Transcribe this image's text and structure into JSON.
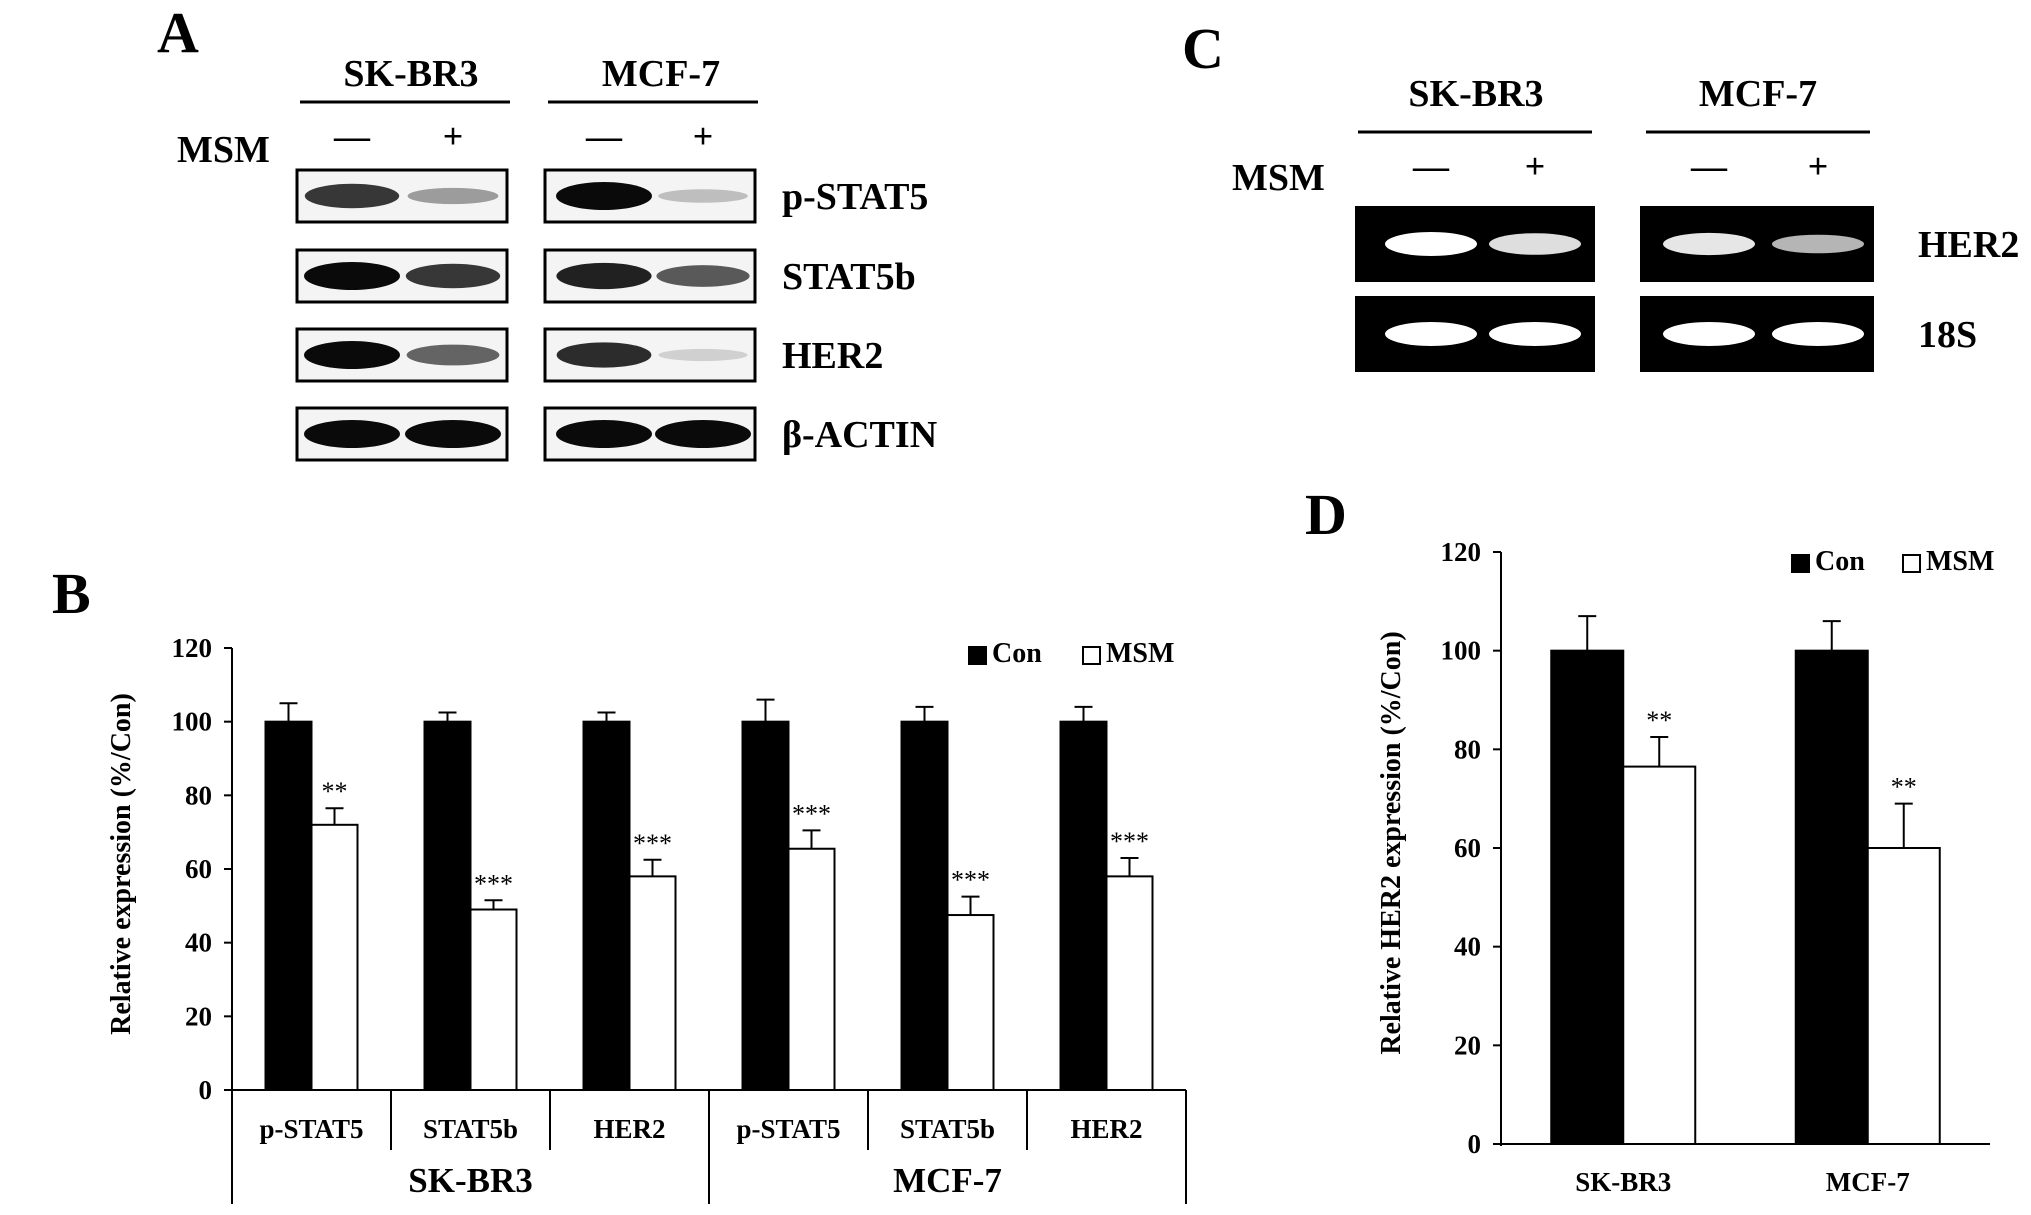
{
  "panels": {
    "a": {
      "letter": "A",
      "cell_lines": [
        "SK-BR3",
        "MCF-7"
      ],
      "treatment_label": "MSM",
      "signs": [
        "—",
        "+"
      ],
      "bands": [
        {
          "name": "p-STAT5",
          "intensity": {
            "skbr3": [
              0.8,
              0.35
            ],
            "mcf7": [
              1.0,
              0.2
            ]
          }
        },
        {
          "name": "STAT5b",
          "intensity": {
            "skbr3": [
              1.0,
              0.8
            ],
            "mcf7": [
              0.9,
              0.65
            ]
          }
        },
        {
          "name": "HER2",
          "intensity": {
            "skbr3": [
              1.0,
              0.6
            ],
            "mcf7": [
              0.85,
              0.12
            ]
          }
        },
        {
          "name": "β-ACTIN",
          "intensity": {
            "skbr3": [
              1.0,
              1.0
            ],
            "mcf7": [
              1.0,
              1.0
            ]
          }
        }
      ]
    },
    "c": {
      "letter": "C",
      "cell_lines": [
        "SK-BR3",
        "MCF-7"
      ],
      "treatment_label": "MSM",
      "signs": [
        "—",
        "+"
      ],
      "bands": [
        {
          "name": "HER2",
          "intensity": {
            "skbr3": [
              1.0,
              0.8
            ],
            "mcf7": [
              0.85,
              0.55
            ]
          }
        },
        {
          "name": "18S",
          "intensity": {
            "skbr3": [
              1.0,
              1.0
            ],
            "mcf7": [
              1.0,
              1.0
            ]
          }
        }
      ]
    }
  },
  "chart_data": [
    {
      "letter": "B",
      "type": "bar",
      "ylabel": "Relative expression (%/Con)",
      "ylim": [
        0,
        120
      ],
      "yticks": [
        0,
        20,
        40,
        60,
        80,
        100,
        120
      ],
      "categories": [
        "p-STAT5",
        "STAT5b",
        "HER2",
        "p-STAT5",
        "STAT5b",
        "HER2"
      ],
      "groups": [
        {
          "label": "SK-BR3",
          "span": [
            0,
            2
          ]
        },
        {
          "label": "MCF-7",
          "span": [
            3,
            5
          ]
        }
      ],
      "series": [
        {
          "name": "Con",
          "color": "#000000",
          "values": [
            100,
            100,
            100,
            100,
            100,
            100
          ],
          "errors": [
            5,
            2.5,
            2.5,
            6,
            4,
            4
          ]
        },
        {
          "name": "MSM",
          "color": "#ffffff",
          "values": [
            72,
            49,
            58,
            65.5,
            47.5,
            58
          ],
          "errors": [
            4.5,
            2.5,
            4.5,
            5,
            5,
            5
          ]
        }
      ],
      "annotations": [
        "**",
        "***",
        "***",
        "***",
        "***",
        "***"
      ],
      "legend_position": "top-right"
    },
    {
      "letter": "D",
      "type": "bar",
      "ylabel": "Relative HER2 expression (%/Con)",
      "ylim": [
        0,
        120
      ],
      "yticks": [
        0,
        20,
        40,
        60,
        80,
        100,
        120
      ],
      "categories": [
        "SK-BR3",
        "MCF-7"
      ],
      "series": [
        {
          "name": "Con",
          "color": "#000000",
          "values": [
            100,
            100
          ],
          "errors": [
            7,
            6
          ]
        },
        {
          "name": "MSM",
          "color": "#ffffff",
          "values": [
            76.5,
            60
          ],
          "errors": [
            6,
            9
          ]
        }
      ],
      "annotations": [
        "**",
        "**"
      ],
      "legend_position": "top-right"
    }
  ]
}
